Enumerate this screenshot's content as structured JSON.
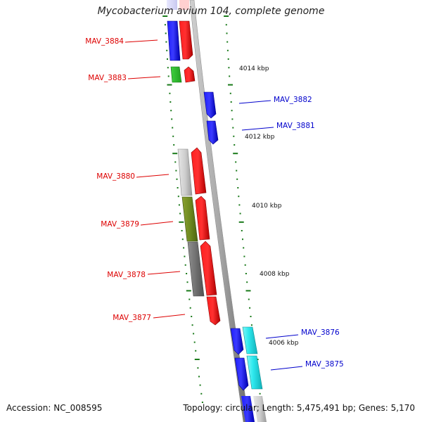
{
  "title": "Mycobacterium avium 104, complete genome",
  "footer": {
    "accession": "Accession: NC_008595",
    "summary": "Topology: circular; Length: 5,475,491 bp; Genes: 5,170"
  },
  "colors": {
    "forward_gene_label": "#dd0000",
    "reverse_gene_label": "#0000cc",
    "tick": "#1a7a1a"
  },
  "scale_labels": [
    "4014 kbp",
    "4012 kbp",
    "4010 kbp",
    "4008 kbp",
    "4006 kbp"
  ],
  "genes": [
    {
      "name": "MAV_3884",
      "strand": "forward"
    },
    {
      "name": "MAV_3883",
      "strand": "forward"
    },
    {
      "name": "MAV_3882",
      "strand": "reverse"
    },
    {
      "name": "MAV_3881",
      "strand": "reverse"
    },
    {
      "name": "MAV_3880",
      "strand": "forward"
    },
    {
      "name": "MAV_3879",
      "strand": "forward"
    },
    {
      "name": "MAV_3878",
      "strand": "forward"
    },
    {
      "name": "MAV_3877",
      "strand": "forward"
    },
    {
      "name": "MAV_3876",
      "strand": "reverse"
    },
    {
      "name": "MAV_3875",
      "strand": "reverse"
    }
  ]
}
